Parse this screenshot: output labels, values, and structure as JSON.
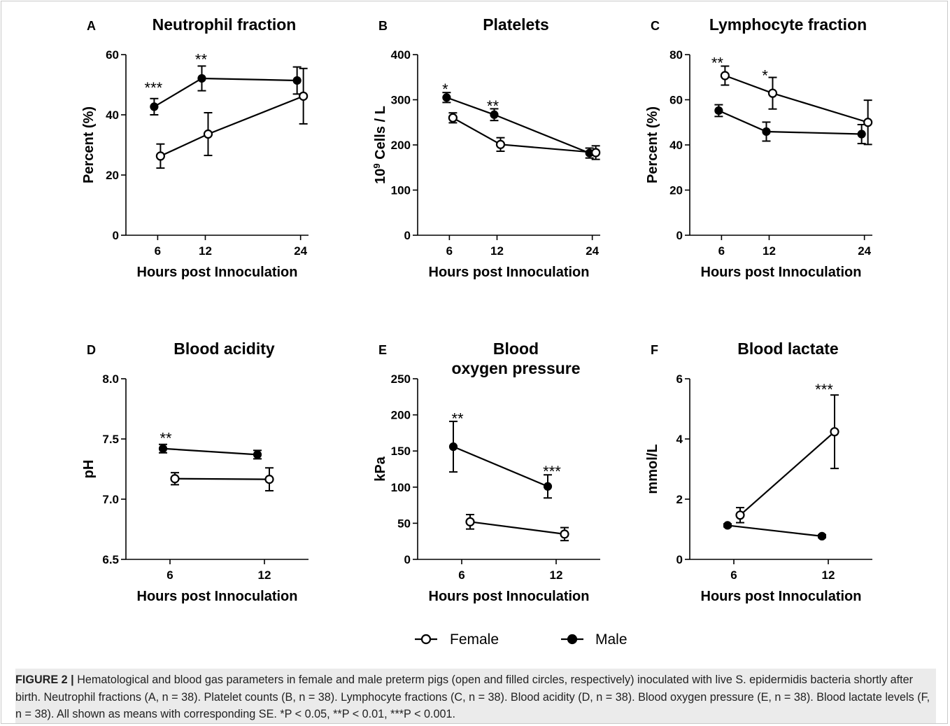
{
  "chart_data": [
    {
      "type": "line",
      "panel_label": "A",
      "title": [
        "Neutrophil fraction"
      ],
      "ylabel": "Percent (%)",
      "xlabel": "Hours post Innoculation",
      "xlim": [
        2,
        25
      ],
      "ylim": [
        0,
        60
      ],
      "xticks": [
        6,
        12,
        24
      ],
      "yticks": [
        0,
        20,
        40,
        60
      ],
      "series": [
        {
          "name": "Female",
          "x": [
            6,
            12,
            24
          ],
          "y": [
            26.3,
            33.6,
            46.2
          ],
          "err": [
            4.0,
            7.1,
            9.2
          ]
        },
        {
          "name": "Male",
          "x": [
            6,
            12,
            24
          ],
          "y": [
            42.7,
            52.1,
            51.4
          ],
          "err": [
            2.7,
            4.1,
            4.5
          ]
        }
      ],
      "annotations": [
        {
          "x": 6,
          "y": 49.5,
          "text": "***"
        },
        {
          "x": 12,
          "y": 59,
          "text": "**"
        }
      ]
    },
    {
      "type": "line",
      "panel_label": "B",
      "title": [
        "Platelets"
      ],
      "ylabel": "Cells / L",
      "ylabel_prefix": "10",
      "ylabel_superscript": "9",
      "xlabel": "Hours post Innoculation",
      "xlim": [
        2,
        25
      ],
      "ylim": [
        0,
        400
      ],
      "xticks": [
        6,
        12,
        24
      ],
      "yticks": [
        0,
        100,
        200,
        300,
        400
      ],
      "series": [
        {
          "name": "Female",
          "x": [
            6,
            12,
            24
          ],
          "y": [
            260,
            201,
            183
          ],
          "err": [
            11,
            15,
            15
          ]
        },
        {
          "name": "Male",
          "x": [
            6,
            12,
            24
          ],
          "y": [
            305,
            267,
            182
          ],
          "err": [
            11,
            13,
            11
          ]
        }
      ],
      "annotations": [
        {
          "x": 6,
          "y": 327,
          "text": "*"
        },
        {
          "x": 12,
          "y": 290,
          "text": "**"
        }
      ]
    },
    {
      "type": "line",
      "panel_label": "C",
      "title": [
        "Lymphocyte fraction"
      ],
      "ylabel": "Percent (%)",
      "xlabel": "Hours post Innoculation",
      "xlim": [
        2,
        25
      ],
      "ylim": [
        0,
        80
      ],
      "xticks": [
        6,
        12,
        24
      ],
      "yticks": [
        0,
        20,
        40,
        60,
        80
      ],
      "series": [
        {
          "name": "Female",
          "x": [
            6,
            12,
            24
          ],
          "y": [
            70.7,
            62.9,
            50.0
          ],
          "err": [
            4.2,
            7.0,
            9.8
          ]
        },
        {
          "name": "Male",
          "x": [
            6,
            12,
            24
          ],
          "y": [
            55.2,
            45.9,
            44.8
          ],
          "err": [
            2.6,
            4.2,
            4.2
          ]
        }
      ],
      "annotations": [
        {
          "x": 6,
          "y": 77,
          "text": "**"
        },
        {
          "x": 12,
          "y": 71.5,
          "text": "*"
        }
      ]
    },
    {
      "type": "line",
      "panel_label": "D",
      "title": [
        "Blood acidity"
      ],
      "ylabel": "pH",
      "xlabel": "Hours post Innoculation",
      "xlim": [
        3.2,
        14.8
      ],
      "ylim": [
        6.5,
        8.0
      ],
      "xticks": [
        6,
        12
      ],
      "yticks": [
        "6.5",
        "7.0",
        "7.5",
        "8.0"
      ],
      "series": [
        {
          "name": "Female",
          "x": [
            6,
            12
          ],
          "y": [
            7.17,
            7.165
          ],
          "err": [
            0.05,
            0.095
          ]
        },
        {
          "name": "Male",
          "x": [
            6,
            12
          ],
          "y": [
            7.42,
            7.37
          ],
          "err": [
            0.035,
            0.035
          ]
        }
      ],
      "annotations": [
        {
          "x": 6,
          "y": 7.52,
          "text": "**"
        }
      ]
    },
    {
      "type": "line",
      "panel_label": "E",
      "title": [
        "Blood",
        "oxygen pressure"
      ],
      "ylabel": "kPa",
      "xlabel": "Hours post Innoculation",
      "xlim": [
        3.2,
        14.8
      ],
      "ylim": [
        0,
        250
      ],
      "xticks": [
        6,
        12
      ],
      "yticks": [
        0,
        50,
        100,
        150,
        200,
        250
      ],
      "series": [
        {
          "name": "Female",
          "x": [
            6,
            12
          ],
          "y": [
            52,
            35
          ],
          "err": [
            10,
            9
          ]
        },
        {
          "name": "Male",
          "x": [
            6,
            12
          ],
          "y": [
            156,
            101
          ],
          "err": [
            35,
            16
          ]
        }
      ],
      "annotations": [
        {
          "x": 6,
          "y": 197,
          "text": "**"
        },
        {
          "x": 12,
          "y": 124,
          "text": "***"
        }
      ]
    },
    {
      "type": "line",
      "panel_label": "F",
      "title": [
        "Blood lactate"
      ],
      "ylabel": "mmol/L",
      "xlabel": "Hours post Innoculation",
      "xlim": [
        3.2,
        14.8
      ],
      "ylim": [
        0,
        6
      ],
      "xticks": [
        6,
        12
      ],
      "yticks": [
        0,
        2,
        4,
        6
      ],
      "series": [
        {
          "name": "Female",
          "x": [
            6,
            12
          ],
          "y": [
            1.47,
            4.24
          ],
          "err": [
            0.25,
            1.22
          ]
        },
        {
          "name": "Male",
          "x": [
            6,
            12
          ],
          "y": [
            1.13,
            0.77
          ],
          "err": [
            0.05,
            0.05
          ]
        }
      ],
      "annotations": [
        {
          "x": 12,
          "y": 5.7,
          "text": "***"
        }
      ]
    }
  ],
  "legend": {
    "items": [
      {
        "label": "Female",
        "marker": "open-circle"
      },
      {
        "label": "Male",
        "marker": "filled-circle"
      }
    ]
  },
  "caption": {
    "label": "FIGURE 2 |",
    "text": "Hematological and blood gas parameters in female and male preterm pigs (open and filled circles, respectively) inoculated with live S. epidermidis bacteria shortly after birth. Neutrophil fractions (A, n = 38). Platelet counts (B, n = 38). Lymphocyte fractions (C, n = 38). Blood acidity (D, n = 38). Blood oxygen pressure (E, n = 38). Blood lactate levels (F, n = 38). All shown as means with corresponding SE. *P < 0.05, **P < 0.01, ***P < 0.001."
  },
  "colors": {
    "ink": "#000000",
    "caption_bg": "#ebebeb",
    "caption_text": "#222222"
  }
}
